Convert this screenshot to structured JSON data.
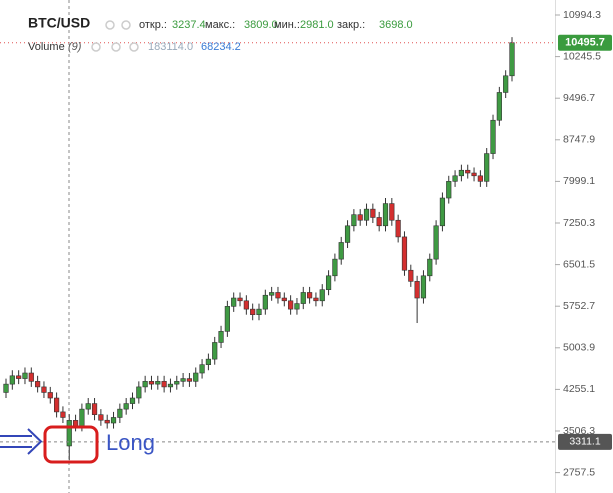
{
  "chart_data": {
    "type": "candlestick",
    "title": "BTC/USD",
    "ohlc_legend": [
      {
        "label": "откр.:",
        "value": "3237.4"
      },
      {
        "label": "макс.:",
        "value": "3809.0"
      },
      {
        "label": "мин.:",
        "value": "2981.0"
      },
      {
        "label": "закр.:",
        "value": "3698.0"
      }
    ],
    "volume_legend": {
      "name": "Volume",
      "param": "(9)",
      "values": [
        "183114.0",
        "68234.2"
      ]
    },
    "up_color": "#3f9a43",
    "down_color": "#d32f2f",
    "series": {
      "open": [
        4200,
        4350,
        4500,
        4450,
        4550,
        4400,
        4300,
        4200,
        4100,
        3850,
        3237.4,
        3698,
        3600,
        3900,
        4000,
        3800,
        3700,
        3650,
        3750,
        3900,
        4000,
        4100,
        4300,
        4400,
        4350,
        4400,
        4300,
        4350,
        4400,
        4450,
        4400,
        4550,
        4700,
        4800,
        5100,
        5300,
        5750,
        5900,
        5850,
        5700,
        5600,
        5700,
        5950,
        6000,
        5900,
        5850,
        5700,
        5800,
        6000,
        5900,
        5850,
        6050,
        6300,
        6600,
        6900,
        7200,
        7400,
        7300,
        7500,
        7350,
        7200,
        7600,
        7300,
        7000,
        6400,
        6200,
        5900,
        6300,
        6600,
        7200,
        7700,
        8000,
        8100,
        8200,
        8150,
        8100,
        8000,
        8500,
        9100,
        9600,
        9900
      ],
      "high": [
        4450,
        4600,
        4600,
        4650,
        4650,
        4500,
        4400,
        4300,
        4200,
        3950,
        3809,
        3800,
        4000,
        4100,
        4100,
        3900,
        3800,
        3850,
        4000,
        4100,
        4200,
        4400,
        4500,
        4500,
        4500,
        4500,
        4450,
        4500,
        4550,
        4550,
        4650,
        4800,
        4900,
        5200,
        5400,
        5850,
        6000,
        6000,
        5950,
        5800,
        5800,
        6050,
        6100,
        6100,
        6000,
        5950,
        5900,
        6100,
        6100,
        6000,
        6150,
        6400,
        6700,
        7000,
        7300,
        7500,
        7500,
        7600,
        7600,
        7450,
        7700,
        7700,
        7400,
        7100,
        6500,
        6300,
        6400,
        6700,
        7300,
        7800,
        8100,
        8200,
        8300,
        8300,
        8250,
        8200,
        8600,
        9200,
        9700,
        10000,
        10595.7
      ],
      "low": [
        4100,
        4250,
        4350,
        4350,
        4300,
        4200,
        4100,
        4000,
        3750,
        3650,
        2981,
        3500,
        3500,
        3800,
        3700,
        3600,
        3550,
        3550,
        3650,
        3800,
        3900,
        4000,
        4200,
        4250,
        4250,
        4200,
        4200,
        4250,
        4300,
        4300,
        4300,
        4450,
        4600,
        4700,
        5000,
        5200,
        5650,
        5750,
        5600,
        5500,
        5500,
        5600,
        5850,
        5800,
        5750,
        5600,
        5600,
        5700,
        5800,
        5750,
        5750,
        5950,
        6200,
        6500,
        6800,
        7100,
        7200,
        7200,
        7250,
        7100,
        7100,
        7200,
        6900,
        6300,
        6100,
        5450,
        5800,
        6200,
        6500,
        7100,
        7600,
        7900,
        8000,
        8050,
        8000,
        7900,
        7900,
        8400,
        9000,
        9500,
        9800
      ],
      "close": [
        4350,
        4500,
        4450,
        4550,
        4400,
        4300,
        4200,
        4100,
        3850,
        3750,
        3698,
        3600,
        3900,
        4000,
        3800,
        3700,
        3650,
        3750,
        3900,
        4000,
        4100,
        4300,
        4400,
        4350,
        4400,
        4300,
        4350,
        4400,
        4450,
        4400,
        4550,
        4700,
        4800,
        5100,
        5300,
        5750,
        5900,
        5850,
        5700,
        5600,
        5700,
        5950,
        6000,
        5900,
        5850,
        5700,
        5800,
        6000,
        5900,
        5850,
        6050,
        6300,
        6600,
        6900,
        7200,
        7400,
        7300,
        7500,
        7350,
        7200,
        7600,
        7300,
        7000,
        6400,
        6200,
        5900,
        6300,
        6600,
        7200,
        7700,
        8000,
        8100,
        8200,
        8150,
        8100,
        8000,
        8500,
        9100,
        9600,
        9900,
        10495.7
      ]
    },
    "ylim": [
      2390.3,
      11264.3
    ],
    "yticks": [
      2757.5,
      3506.3,
      4255.1,
      5003.9,
      5752.7,
      6501.5,
      7250.3,
      7999.1,
      8747.9,
      9496.7,
      10245.5,
      10994.3
    ],
    "last_price": 10495.7,
    "crosshair_price": 3311.1,
    "annotation": "Long"
  }
}
